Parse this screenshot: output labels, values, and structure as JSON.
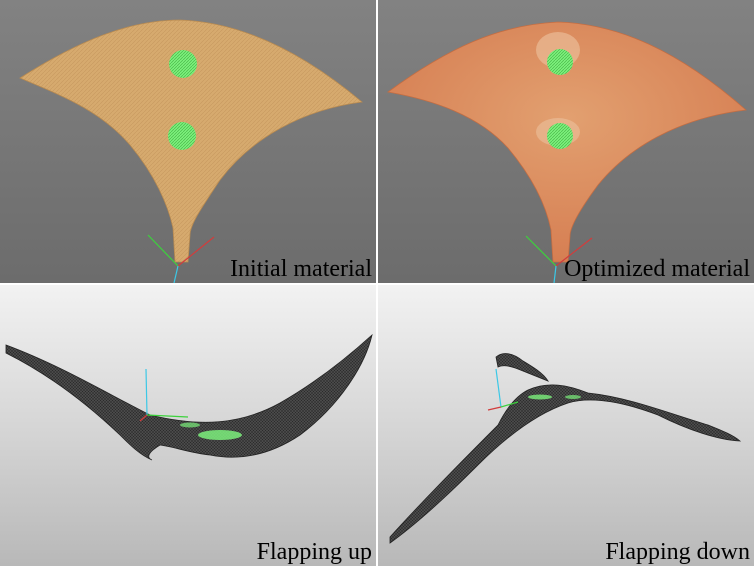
{
  "panels": [
    {
      "caption": "Initial material"
    },
    {
      "caption": "Optimized material"
    },
    {
      "caption": "Flapping up"
    },
    {
      "caption": "Flapping down"
    }
  ],
  "colors": {
    "viewport_gray": "#7a7a7a",
    "initial_material": "#d6aa6e",
    "optimized_material": "#d98a5a",
    "optimized_core": "#e2a070",
    "highlight_green": "#7cf07c",
    "mesh_dark": "#3a3a3a",
    "axis_red": "#d23c3c",
    "axis_green": "#3cd23c",
    "axis_cyan": "#3cc8e6"
  }
}
